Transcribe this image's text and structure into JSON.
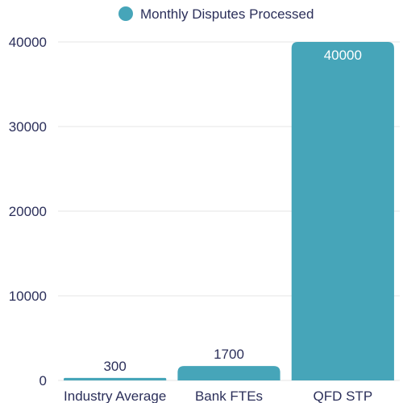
{
  "chart_data": {
    "type": "bar",
    "categories": [
      "Industry Average",
      "Bank FTEs",
      "QFD STP"
    ],
    "series": [
      {
        "name": "Monthly Disputes Processed",
        "values": [
          300,
          1700,
          40000
        ],
        "color": "#46a5b9"
      }
    ],
    "title": "",
    "xlabel": "",
    "ylabel": "",
    "ylim": [
      0,
      40000
    ],
    "yticks": [
      0,
      10000,
      20000,
      30000,
      40000
    ],
    "grid": true,
    "legend": "top-center",
    "data_labels": true
  },
  "colors": {
    "bar": "#46a5b9",
    "text": "#2b2f5a",
    "grid": "#e6e6e6"
  }
}
